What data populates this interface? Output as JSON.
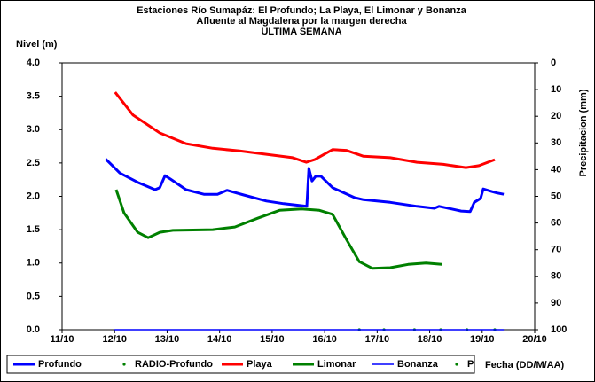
{
  "chart_data": {
    "type": "line",
    "title": [
      "Estaciones Río Sumapáz: El Profundo; La Playa, El Limonar y Bonanza",
      "Afluente al Magdalena por la margen derecha",
      "ULTIMA SEMANA"
    ],
    "ylabel": "Nivel (m)",
    "y2label": "Precipitacion (mm)",
    "xlabel": "Fecha (DD/M/AA)",
    "xlim": [
      11,
      20
    ],
    "xticks": [
      {
        "value": 11,
        "label": "11/10"
      },
      {
        "value": 12,
        "label": "12/10"
      },
      {
        "value": 13,
        "label": "13/10"
      },
      {
        "value": 14,
        "label": "14/10"
      },
      {
        "value": 15,
        "label": "15/10"
      },
      {
        "value": 16,
        "label": "16/10"
      },
      {
        "value": 17,
        "label": "17/10"
      },
      {
        "value": 18,
        "label": "18/10"
      },
      {
        "value": 19,
        "label": "19/10"
      },
      {
        "value": 20,
        "label": "20/10"
      }
    ],
    "ylim": [
      0,
      4
    ],
    "yticks": [
      {
        "value": 0,
        "label": "0.0"
      },
      0.5,
      {
        "value": 1,
        "label": "1.0"
      },
      1.5,
      {
        "value": 2,
        "label": "2.0"
      },
      2.5,
      {
        "value": 3,
        "label": "3.0"
      },
      3.5,
      {
        "value": 4,
        "label": "4.0"
      }
    ],
    "y2lim": [
      100,
      0
    ],
    "y2ticks": [
      0,
      10,
      20,
      30,
      40,
      50,
      60,
      70,
      80,
      90,
      100
    ],
    "series": [
      {
        "name": "Profundo",
        "color": "#0000ff",
        "style": "line",
        "width": 3,
        "x": [
          11.83,
          12.1,
          12.44,
          12.77,
          12.86,
          12.96,
          13.06,
          13.36,
          13.7,
          13.96,
          14.14,
          14.46,
          14.89,
          15.22,
          15.66,
          15.7,
          15.76,
          15.83,
          15.93,
          16.15,
          16.57,
          16.74,
          17.25,
          17.76,
          18.09,
          18.18,
          18.6,
          18.77,
          18.85,
          18.97,
          19.02,
          19.19,
          19.28,
          19.41
        ],
        "values": [
          2.56,
          2.35,
          2.21,
          2.1,
          2.13,
          2.31,
          2.26,
          2.1,
          2.03,
          2.03,
          2.09,
          2.02,
          1.93,
          1.89,
          1.85,
          2.42,
          2.23,
          2.3,
          2.3,
          2.13,
          1.98,
          1.95,
          1.91,
          1.85,
          1.82,
          1.85,
          1.78,
          1.77,
          1.91,
          1.97,
          2.11,
          2.07,
          2.05,
          2.03
        ]
      },
      {
        "name": "RADIO-Profundo",
        "color": "#008000",
        "style": "points",
        "width": 1,
        "x": [
          16.66,
          17.13,
          17.71,
          18.21,
          18.71,
          19.24
        ],
        "values": [
          0,
          0,
          0,
          0,
          0,
          0
        ]
      },
      {
        "name": "Playa",
        "color": "#ff0000",
        "style": "line",
        "width": 3,
        "x": [
          12.01,
          12.35,
          12.86,
          13.36,
          13.87,
          14.38,
          14.89,
          15.39,
          15.65,
          15.81,
          16.15,
          16.41,
          16.74,
          17.25,
          17.76,
          18.26,
          18.69,
          18.94,
          19.24
        ],
        "values": [
          3.56,
          3.22,
          2.95,
          2.79,
          2.72,
          2.68,
          2.63,
          2.58,
          2.51,
          2.55,
          2.7,
          2.69,
          2.6,
          2.58,
          2.51,
          2.48,
          2.43,
          2.46,
          2.55
        ]
      },
      {
        "name": "Limonar",
        "color": "#008000",
        "style": "line",
        "width": 3,
        "x": [
          12.03,
          12.18,
          12.44,
          12.64,
          12.86,
          13.11,
          13.87,
          14.29,
          14.72,
          15.14,
          15.56,
          15.9,
          16.15,
          16.41,
          16.66,
          16.91,
          17.25,
          17.59,
          17.93,
          18.23
        ],
        "values": [
          2.1,
          1.75,
          1.46,
          1.38,
          1.46,
          1.49,
          1.5,
          1.54,
          1.67,
          1.79,
          1.81,
          1.79,
          1.73,
          1.36,
          1.02,
          0.92,
          0.93,
          0.98,
          1.0,
          0.98
        ]
      },
      {
        "name": "Bonanza",
        "color": "#0000ff",
        "style": "line",
        "width": 1.5,
        "x": [
          12.0,
          19.41
        ],
        "values": [
          0,
          0
        ]
      },
      {
        "name": "P",
        "color": "#008000",
        "style": "points",
        "width": 1,
        "axis": "y2",
        "x": [],
        "values": []
      }
    ]
  }
}
